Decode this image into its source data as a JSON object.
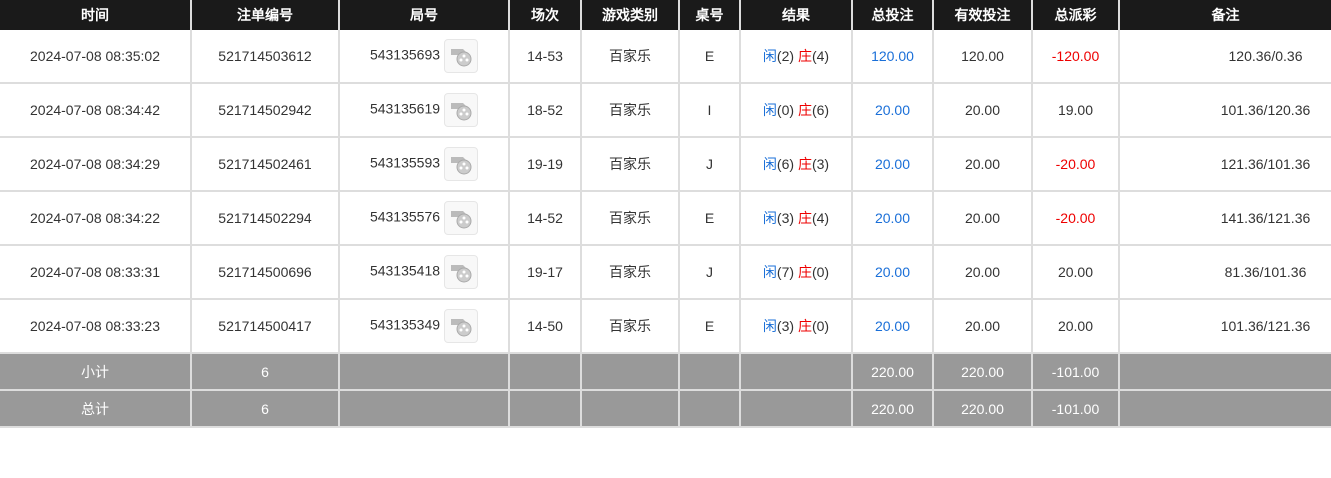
{
  "columns": [
    "时间",
    "注单编号",
    "局号",
    "场次",
    "游戏类别",
    "桌号",
    "结果",
    "总投注",
    "有效投注",
    "总派彩",
    "备注"
  ],
  "rows": [
    {
      "time": "2024-07-08 08:35:02",
      "bet_id": "521714503612",
      "round": "543135693",
      "shoe": "14-53",
      "game": "百家乐",
      "table": "E",
      "player": "闲",
      "player_val": "(2)",
      "banker": "庄",
      "banker_val": "(4)",
      "total_bet": "120.00",
      "valid_bet": "120.00",
      "payout": "-120.00",
      "payout_neg": true,
      "remark": "120.36/0.36"
    },
    {
      "time": "2024-07-08 08:34:42",
      "bet_id": "521714502942",
      "round": "543135619",
      "shoe": "18-52",
      "game": "百家乐",
      "table": "I",
      "player": "闲",
      "player_val": "(0)",
      "banker": "庄",
      "banker_val": "(6)",
      "total_bet": "20.00",
      "valid_bet": "20.00",
      "payout": "19.00",
      "payout_neg": false,
      "remark": "101.36/120.36"
    },
    {
      "time": "2024-07-08 08:34:29",
      "bet_id": "521714502461",
      "round": "543135593",
      "shoe": "19-19",
      "game": "百家乐",
      "table": "J",
      "player": "闲",
      "player_val": "(6)",
      "banker": "庄",
      "banker_val": "(3)",
      "total_bet": "20.00",
      "valid_bet": "20.00",
      "payout": "-20.00",
      "payout_neg": true,
      "remark": "121.36/101.36"
    },
    {
      "time": "2024-07-08 08:34:22",
      "bet_id": "521714502294",
      "round": "543135576",
      "shoe": "14-52",
      "game": "百家乐",
      "table": "E",
      "player": "闲",
      "player_val": "(3)",
      "banker": "庄",
      "banker_val": "(4)",
      "total_bet": "20.00",
      "valid_bet": "20.00",
      "payout": "-20.00",
      "payout_neg": true,
      "remark": "141.36/121.36"
    },
    {
      "time": "2024-07-08 08:33:31",
      "bet_id": "521714500696",
      "round": "543135418",
      "shoe": "19-17",
      "game": "百家乐",
      "table": "J",
      "player": "闲",
      "player_val": "(7)",
      "banker": "庄",
      "banker_val": "(0)",
      "total_bet": "20.00",
      "valid_bet": "20.00",
      "payout": "20.00",
      "payout_neg": false,
      "remark": "81.36/101.36"
    },
    {
      "time": "2024-07-08 08:33:23",
      "bet_id": "521714500417",
      "round": "543135349",
      "shoe": "14-50",
      "game": "百家乐",
      "table": "E",
      "player": "闲",
      "player_val": "(3)",
      "banker": "庄",
      "banker_val": "(0)",
      "total_bet": "20.00",
      "valid_bet": "20.00",
      "payout": "20.00",
      "payout_neg": false,
      "remark": "101.36/121.36"
    }
  ],
  "summary": [
    {
      "label": "小计",
      "count": "6",
      "total_bet": "220.00",
      "valid_bet": "220.00",
      "payout": "-101.00"
    },
    {
      "label": "总计",
      "count": "6",
      "total_bet": "220.00",
      "valid_bet": "220.00",
      "payout": "-101.00"
    }
  ],
  "icons": {
    "replay": "video-replay-icon"
  },
  "colors": {
    "header_bg": "#1a1a1a",
    "player": "#1a6fd8",
    "banker": "#e00000",
    "summary_bg": "#999999"
  }
}
